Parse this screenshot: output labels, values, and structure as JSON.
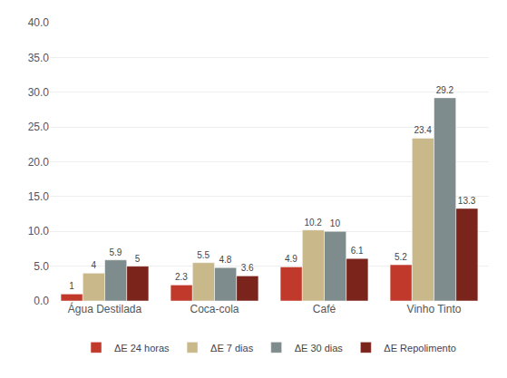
{
  "chart_data": {
    "type": "bar",
    "categories": [
      "Água Destilada",
      "Coca-cola",
      "Café",
      "Vinho Tinto"
    ],
    "series": [
      {
        "name": "ΔE 24 horas",
        "color": "#C0392B",
        "values": [
          1.0,
          2.3,
          4.9,
          5.2
        ]
      },
      {
        "name": "ΔE 7 dias",
        "color": "#C8B88A",
        "values": [
          4.0,
          5.5,
          10.2,
          23.4
        ]
      },
      {
        "name": "ΔE 30 dias",
        "color": "#7F8C8D",
        "values": [
          5.9,
          4.8,
          10.0,
          29.2
        ]
      },
      {
        "name": "ΔE Repolimento",
        "color": "#7B241C",
        "values": [
          5.0,
          3.6,
          6.1,
          13.3
        ]
      }
    ],
    "ylim": [
      0,
      40.0
    ],
    "yticks": [
      {
        "value": 0.0,
        "label": "0.0"
      },
      {
        "value": 5.0,
        "label": "5.0"
      },
      {
        "value": 10.0,
        "label": "10.0"
      },
      {
        "value": 15.0,
        "label": "15.0"
      },
      {
        "value": 20.0,
        "label": "20.0"
      },
      {
        "value": 25.0,
        "label": "25.0"
      },
      {
        "value": 30.0,
        "label": "30.0"
      },
      {
        "value": 35.0,
        "label": "35.0"
      },
      {
        "value": 40.0,
        "label": "40.0"
      }
    ],
    "grid": true,
    "legend": "bottom",
    "data_labels": true
  }
}
